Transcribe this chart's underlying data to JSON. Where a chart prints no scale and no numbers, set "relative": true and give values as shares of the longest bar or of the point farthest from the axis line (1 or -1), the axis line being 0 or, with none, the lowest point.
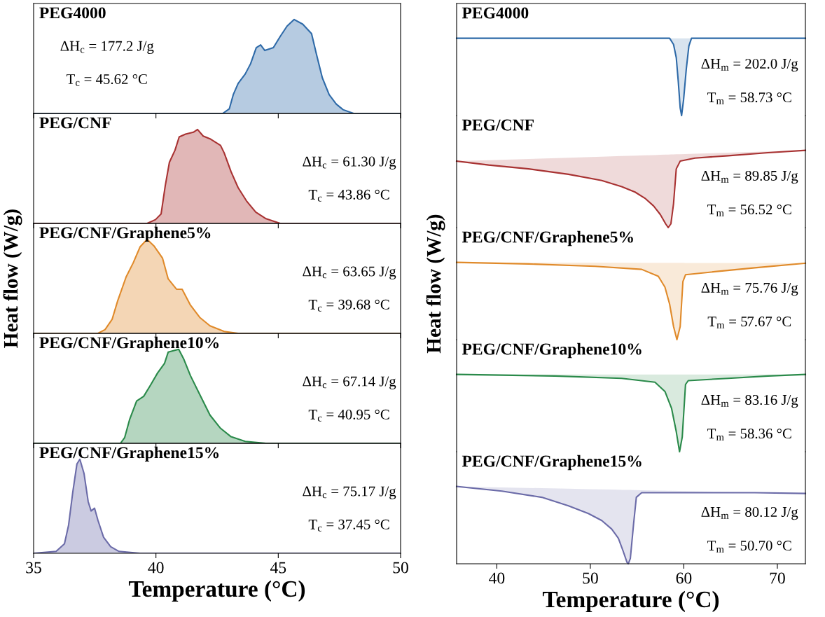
{
  "chart_data": [
    {
      "type": "area",
      "title": "PEG4000",
      "ylabel": "Heat flow (W/g)",
      "relative": true,
      "xlim": [
        35,
        50
      ],
      "xticks": [
        35,
        40,
        45,
        50
      ],
      "tick_labels": false,
      "color": "#2e6aa8",
      "x": [
        35,
        42.73,
        43.0,
        43.16,
        43.36,
        43.65,
        43.87,
        44.1,
        44.28,
        44.45,
        44.8,
        45.08,
        45.36,
        45.65,
        46.0,
        46.36,
        46.57,
        46.8,
        47.08,
        47.37,
        47.65,
        48.08,
        50
      ],
      "values": [
        0,
        0,
        0.05,
        0.2,
        0.32,
        0.42,
        0.53,
        0.7,
        0.73,
        0.67,
        0.7,
        0.82,
        0.93,
        1.0,
        0.95,
        0.85,
        0.62,
        0.38,
        0.2,
        0.1,
        0.04,
        0,
        0
      ],
      "annotations": [
        "ΔH$_{c}$ = 177.2 J/g",
        "T$_{c}$ = 45.62 °C"
      ]
    },
    {
      "type": "area",
      "title": "PEG/CNF",
      "relative": true,
      "xlim": [
        35,
        50
      ],
      "xticks": [
        35,
        40,
        45,
        50
      ],
      "tick_labels": false,
      "color": "#a83232",
      "x": [
        35,
        39.64,
        39.98,
        40.21,
        40.38,
        40.55,
        40.78,
        40.95,
        41.21,
        41.53,
        41.7,
        41.93,
        42.21,
        42.64,
        42.79,
        43.07,
        43.36,
        43.7,
        44.08,
        44.5,
        45.08,
        50
      ],
      "values": [
        0,
        0,
        0.04,
        0.1,
        0.4,
        0.65,
        0.78,
        0.92,
        0.95,
        0.97,
        1.0,
        0.93,
        0.9,
        0.83,
        0.75,
        0.55,
        0.38,
        0.24,
        0.12,
        0.05,
        0,
        0
      ],
      "annotations": [
        "ΔH$_{c}$ = 61.30 J/g",
        "T$_{c}$ = 43.86 °C"
      ]
    },
    {
      "type": "area",
      "title": "PEG/CNF/Graphene5%",
      "relative": true,
      "xlim": [
        35,
        50
      ],
      "xticks": [
        35,
        40,
        45,
        50
      ],
      "tick_labels": false,
      "color": "#e08a2a",
      "x": [
        35,
        37.63,
        37.92,
        38.21,
        38.44,
        38.78,
        39.07,
        39.35,
        39.64,
        39.92,
        40.27,
        40.5,
        40.84,
        41.07,
        41.41,
        41.79,
        42.21,
        42.79,
        43.36,
        50
      ],
      "values": [
        0,
        0,
        0.04,
        0.15,
        0.35,
        0.6,
        0.75,
        0.92,
        1.0,
        0.93,
        0.8,
        0.58,
        0.47,
        0.47,
        0.3,
        0.17,
        0.08,
        0.02,
        0,
        0
      ],
      "annotations": [
        "ΔH$_{c}$ = 63.65 J/g",
        "T$_{c}$ = 39.68 °C"
      ]
    },
    {
      "type": "area",
      "title": "PEG/CNF/Graphene10%",
      "relative": true,
      "xlim": [
        35,
        50
      ],
      "xticks": [
        35,
        40,
        45,
        50
      ],
      "tick_labels": false,
      "color": "#2a8a4a",
      "x": [
        35,
        38.55,
        38.72,
        38.92,
        39.21,
        39.5,
        39.78,
        40.07,
        40.35,
        40.5,
        40.93,
        41.13,
        41.41,
        41.79,
        42.21,
        42.64,
        43.07,
        43.65,
        44.5,
        50
      ],
      "values": [
        0,
        0,
        0.06,
        0.25,
        0.45,
        0.5,
        0.62,
        0.75,
        0.85,
        0.97,
        1.0,
        0.9,
        0.72,
        0.52,
        0.3,
        0.16,
        0.07,
        0.02,
        0,
        0
      ],
      "annotations": [
        "ΔH$_{c}$ = 67.14 J/g",
        "T$_{c}$ = 40.95 °C"
      ]
    },
    {
      "type": "area",
      "title": "PEG/CNF/Graphene15%",
      "xlabel": "Temperature (°C)",
      "relative": true,
      "xlim": [
        35,
        50
      ],
      "xticks": [
        35,
        40,
        45,
        50
      ],
      "tick_labels": "x",
      "color": "#6b6ba8",
      "x": [
        35,
        35.92,
        36.26,
        36.43,
        36.6,
        36.77,
        36.89,
        37.06,
        37.23,
        37.35,
        37.49,
        37.63,
        37.86,
        38.15,
        38.49,
        39.35,
        50
      ],
      "values": [
        0,
        0.02,
        0.1,
        0.3,
        0.65,
        0.95,
        1.0,
        0.85,
        0.55,
        0.45,
        0.48,
        0.35,
        0.17,
        0.07,
        0.02,
        0,
        0
      ],
      "annotations": [
        "ΔH$_{c}$ = 75.17 J/g",
        "T$_{c}$ = 37.45 °C"
      ]
    },
    {
      "type": "line",
      "title": "PEG4000",
      "ylabel": "Heat flow (W/g)",
      "relative": true,
      "xlim": [
        35.7,
        73
      ],
      "xticks": [
        40,
        50,
        60,
        70
      ],
      "tick_labels": false,
      "color": "#2e6aa8",
      "x": [
        35.7,
        58.48,
        58.9,
        59.19,
        59.4,
        59.61,
        59.76,
        59.97,
        60.26,
        60.54,
        60.82,
        73
      ],
      "values": [
        1,
        1,
        0.92,
        0.75,
        0.45,
        0.1,
        0,
        0.2,
        0.6,
        0.9,
        1,
        1
      ],
      "annotations": [
        "ΔH$_{m}$ = 202.0 J/g",
        "T$_{m}$ = 58.73 °C"
      ]
    },
    {
      "type": "line",
      "title": "PEG/CNF",
      "relative": true,
      "xlim": [
        35.7,
        73
      ],
      "xticks": [
        40,
        50,
        60,
        70
      ],
      "tick_labels": false,
      "color": "#a83232",
      "x": [
        35.7,
        39.12,
        43.39,
        47.66,
        51.22,
        53.35,
        54.78,
        55.84,
        56.77,
        57.48,
        58.05,
        58.33,
        58.62,
        58.9,
        59.19,
        59.61,
        61.18,
        64.74,
        69.01,
        73.0
      ],
      "values": [
        0.86,
        0.81,
        0.76,
        0.69,
        0.61,
        0.53,
        0.46,
        0.38,
        0.28,
        0.17,
        0.05,
        0,
        0.05,
        0.31,
        0.76,
        0.86,
        0.9,
        0.93,
        0.97,
        1.0
      ],
      "annotations": [
        "ΔH$_{m}$ = 89.85 J/g",
        "T$_{m}$ = 56.52 °C"
      ]
    },
    {
      "type": "line",
      "title": "PEG/CNF/Graphene5%",
      "relative": true,
      "xlim": [
        35.7,
        73
      ],
      "xticks": [
        40,
        50,
        60,
        70
      ],
      "tick_labels": false,
      "color": "#e08a2a",
      "x": [
        35.7,
        43.39,
        50.5,
        55.49,
        57.27,
        57.98,
        58.48,
        58.9,
        59.26,
        59.61,
        59.9,
        60.18,
        63.32,
        67.59,
        73.0
      ],
      "values": [
        1.0,
        0.98,
        0.95,
        0.91,
        0.82,
        0.68,
        0.46,
        0.17,
        0,
        0.17,
        0.75,
        0.84,
        0.88,
        0.93,
        0.99
      ],
      "annotations": [
        "ΔH$_{m}$ = 75.76 J/g",
        "T$_{m}$ = 57.67 °C"
      ]
    },
    {
      "type": "line",
      "title": "PEG/CNF/Graphene10%",
      "relative": true,
      "xlim": [
        35.7,
        73
      ],
      "xticks": [
        40,
        50,
        60,
        70
      ],
      "tick_labels": false,
      "color": "#2a8a4a",
      "x": [
        35.7,
        46.23,
        53.35,
        56.91,
        57.98,
        58.69,
        59.19,
        59.54,
        59.83,
        60.18,
        60.47,
        64.74,
        69.01,
        73.0
      ],
      "values": [
        1,
        0.98,
        0.95,
        0.9,
        0.78,
        0.56,
        0.26,
        0,
        0.19,
        0.87,
        0.92,
        0.95,
        0.98,
        1
      ],
      "annotations": [
        "ΔH$_{m}$ = 83.16 J/g",
        "T$_{m}$ = 58.36 °C"
      ]
    },
    {
      "type": "line",
      "title": "PEG/CNF/Graphene15%",
      "xlabel": "Temperature (°C)",
      "relative": true,
      "xlim": [
        35.7,
        73
      ],
      "xticks": [
        40,
        50,
        60,
        70
      ],
      "tick_labels": "x",
      "color": "#6b6ba8",
      "x": [
        35.7,
        40.54,
        44.81,
        47.66,
        49.79,
        51.22,
        52.28,
        53.0,
        53.49,
        53.92,
        54.06,
        54.28,
        54.63,
        54.92,
        55.49,
        60.47,
        67.59,
        73.0
      ],
      "values": [
        1.0,
        0.94,
        0.86,
        0.75,
        0.65,
        0.56,
        0.45,
        0.33,
        0.17,
        0.02,
        0,
        0.07,
        0.52,
        0.86,
        0.92,
        0.92,
        0.92,
        0.91
      ],
      "annotations": [
        "ΔH$_{m}$ = 80.12 J/g",
        "T$_{m}$ = 50.70 °C"
      ]
    }
  ]
}
